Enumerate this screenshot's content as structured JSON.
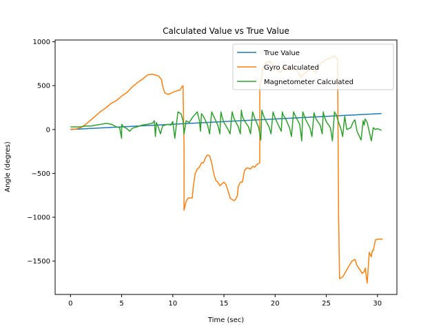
{
  "chart_data": {
    "type": "line",
    "title": "Calculated Value vs True Value",
    "xlabel": "Time (sec)",
    "ylabel": "Angle (degres)",
    "xlim": [
      -1.5,
      31.9
    ],
    "ylim": [
      -1880,
      1020
    ],
    "xticks": [
      0,
      5,
      10,
      15,
      20,
      25,
      30
    ],
    "yticks": [
      1000,
      500,
      0,
      -500,
      -1000,
      -1500
    ],
    "legend_position": "top-right",
    "series": [
      {
        "name": "True Value",
        "color": "#1f77b4",
        "x": [
          0,
          30.4
        ],
        "y": [
          0,
          182
        ]
      },
      {
        "name": "Gyro Calculated",
        "color": "#ff7f0e",
        "x": [
          0,
          0.5,
          1.0,
          1.5,
          2.0,
          2.5,
          3.0,
          3.5,
          4.0,
          4.5,
          5.0,
          5.5,
          6.0,
          6.5,
          7.0,
          7.3,
          7.6,
          8.0,
          8.3,
          8.6,
          8.9,
          9.0,
          9.2,
          9.5,
          9.8,
          10.1,
          10.4,
          10.7,
          10.8,
          11.0,
          11.1,
          11.1,
          11.3,
          11.5,
          11.9,
          12.0,
          12.2,
          12.4,
          12.6,
          12.8,
          13.0,
          13.2,
          13.4,
          13.6,
          13.8,
          14.0,
          14.2,
          14.4,
          14.6,
          14.8,
          15.0,
          15.2,
          15.4,
          15.6,
          15.8,
          16.0,
          16.1,
          16.3,
          16.4,
          16.6,
          16.8,
          17.0,
          17.2,
          17.4,
          17.6,
          17.8,
          18.0,
          18.2,
          18.5,
          18.5,
          18.7,
          18.8,
          19.0,
          19.5,
          20.0,
          20.5,
          21.0,
          21.5,
          22.0,
          22.5,
          23.0,
          23.5,
          24.0,
          24.5,
          25.0,
          25.5,
          25.8,
          26.1,
          26.2,
          26.3,
          26.6,
          27.0,
          27.5,
          27.8,
          28.0,
          28.3,
          28.5,
          28.7,
          28.8,
          29.0,
          29.2,
          29.4,
          29.5,
          29.6,
          29.8,
          30.0,
          30.5
        ],
        "y": [
          5,
          5,
          20,
          60,
          110,
          160,
          210,
          250,
          300,
          330,
          380,
          420,
          480,
          530,
          570,
          600,
          625,
          630,
          620,
          610,
          570,
          500,
          420,
          400,
          410,
          430,
          440,
          450,
          470,
          500,
          -200,
          -920,
          -820,
          -780,
          -780,
          -650,
          -500,
          -450,
          -430,
          -380,
          -380,
          -320,
          -290,
          -300,
          -380,
          -500,
          -580,
          -600,
          -640,
          -620,
          -600,
          -630,
          -700,
          -780,
          -800,
          -810,
          -800,
          -760,
          -650,
          -600,
          -600,
          -470,
          -440,
          -440,
          -450,
          -420,
          -430,
          -400,
          -380,
          500,
          600,
          700,
          750,
          780,
          700,
          650,
          720,
          680,
          700,
          600,
          650,
          700,
          650,
          760,
          800,
          820,
          840,
          800,
          -1000,
          -1700,
          -1680,
          -1600,
          -1500,
          -1480,
          -1550,
          -1600,
          -1640,
          -1620,
          -1580,
          -1750,
          -1400,
          -1450,
          -1380,
          -1380,
          -1260,
          -1250,
          -1250
        ]
      },
      {
        "name": "Magnetometer Calculated",
        "color": "#2ca02c",
        "x": [
          0,
          0.5,
          1.0,
          1.5,
          2.0,
          2.5,
          3.0,
          3.5,
          4.0,
          4.5,
          4.8,
          5.0,
          5.0,
          5.2,
          5.5,
          5.8,
          6.0,
          6.2,
          6.5,
          7.0,
          7.5,
          8.0,
          8.2,
          8.3,
          8.4,
          8.6,
          8.8,
          9.0,
          9.5,
          9.8,
          10.0,
          10.2,
          10.5,
          10.8,
          11.0,
          11.1,
          11.3,
          11.6,
          12.0,
          12.4,
          12.6,
          12.7,
          12.8,
          13.0,
          13.4,
          13.6,
          13.8,
          14.0,
          14.4,
          14.6,
          14.7,
          14.8,
          15.0,
          15.4,
          15.6,
          15.8,
          16.0,
          16.4,
          16.6,
          16.7,
          16.8,
          17.0,
          17.4,
          17.6,
          17.8,
          18.0,
          18.4,
          18.6,
          18.7,
          18.8,
          19.0,
          19.4,
          19.6,
          19.8,
          20.0,
          20.4,
          20.6,
          20.7,
          20.8,
          21.0,
          21.4,
          21.6,
          21.8,
          22.0,
          22.4,
          22.6,
          22.7,
          22.8,
          23.0,
          23.4,
          23.6,
          23.8,
          24.0,
          24.4,
          24.6,
          24.7,
          24.8,
          25.0,
          25.4,
          25.6,
          25.8,
          26.0,
          26.2,
          26.4,
          26.6,
          26.8,
          27.0,
          27.4,
          27.6,
          27.8,
          28.0,
          28.4,
          28.6,
          28.7,
          28.8,
          29.0,
          29.4,
          29.6,
          29.8,
          30.0,
          30.4
        ],
        "y": [
          30,
          30,
          30,
          40,
          40,
          50,
          60,
          70,
          60,
          30,
          20,
          -100,
          60,
          30,
          10,
          -20,
          10,
          20,
          30,
          50,
          60,
          70,
          100,
          -80,
          80,
          20,
          -50,
          40,
          60,
          50,
          90,
          -100,
          200,
          180,
          100,
          -50,
          100,
          80,
          150,
          200,
          100,
          -20,
          180,
          150,
          50,
          -50,
          200,
          150,
          50,
          -50,
          200,
          150,
          80,
          0,
          -50,
          200,
          120,
          30,
          -50,
          220,
          150,
          100,
          30,
          -50,
          200,
          130,
          20,
          -120,
          220,
          180,
          120,
          30,
          -50,
          200,
          130,
          30,
          -20,
          200,
          160,
          130,
          20,
          -80,
          200,
          150,
          60,
          -130,
          200,
          170,
          110,
          20,
          -80,
          190,
          120,
          50,
          -50,
          200,
          150,
          90,
          20,
          -130,
          200,
          160,
          80,
          20,
          -80,
          150,
          0,
          20,
          80,
          110,
          -20,
          -120,
          100,
          50,
          120,
          80,
          -130,
          20,
          0,
          10,
          -10
        ]
      }
    ]
  }
}
